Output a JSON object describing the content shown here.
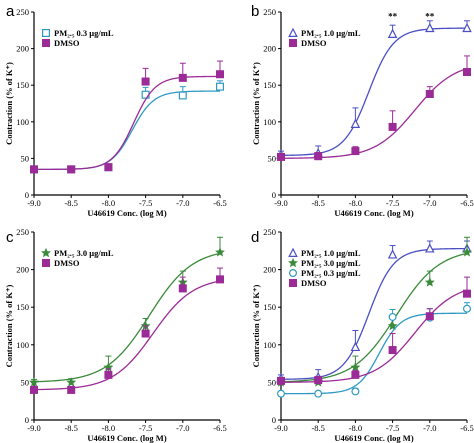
{
  "colors": {
    "pm25_0_3": "#2e9ac4",
    "pm25_1_0": "#4a4fc4",
    "pm25_3_0": "#3a8a3a",
    "dmso": "#9b2b97",
    "axis": "#000000"
  },
  "chart_data": [
    {
      "type": "scatter",
      "panel_label": "a",
      "xlabel": "U46619 Conc. (log M)",
      "ylabel": "Contraction (% of K⁺)",
      "xlim": [
        -9.0,
        -6.5
      ],
      "ylim": [
        0,
        250
      ],
      "x_ticks": [
        "-9.0",
        "-8.5",
        "-8.0",
        "-7.5",
        "-7.0",
        "-6.5"
      ],
      "y_ticks": [
        "0",
        "50",
        "100",
        "150",
        "200",
        "250"
      ],
      "legend_position": "top-left",
      "series": [
        {
          "name": "PM₂.₅ 0.3 μg/mL",
          "marker": "open-square",
          "color_key": "pm25_0_3",
          "x": [
            -9.0,
            -8.5,
            -8.0,
            -7.5,
            -7.0,
            -6.5
          ],
          "y": [
            35,
            35,
            38,
            137,
            136,
            148
          ],
          "error": [
            3,
            3,
            4,
            10,
            12,
            8
          ],
          "fit": {
            "bottom": 35,
            "top": 142,
            "ec50": -7.68,
            "hill": 3.0
          }
        },
        {
          "name": "DMSO",
          "marker": "filled-square",
          "color_key": "dmso",
          "x": [
            -9.0,
            -8.5,
            -8.0,
            -7.5,
            -7.0,
            -6.5
          ],
          "y": [
            35,
            35,
            38,
            155,
            160,
            165
          ],
          "error": [
            3,
            3,
            4,
            18,
            20,
            18
          ],
          "fit": {
            "bottom": 35,
            "top": 162,
            "ec50": -7.66,
            "hill": 3.0
          }
        }
      ]
    },
    {
      "type": "scatter",
      "panel_label": "b",
      "xlabel": "U46619 Conc. (log M)",
      "ylabel": "Contraction (% of K⁺)",
      "xlim": [
        -9.0,
        -6.5
      ],
      "ylim": [
        0,
        250
      ],
      "x_ticks": [
        "-9.0",
        "-8.5",
        "-8.0",
        "-7.5",
        "-7.0",
        "-6.5"
      ],
      "y_ticks": [
        "0",
        "50",
        "100",
        "150",
        "200",
        "250"
      ],
      "legend_position": "top-left",
      "annotations": [
        {
          "text": "**",
          "x": -7.5,
          "y": 240
        },
        {
          "text": "**",
          "x": -7.0,
          "y": 240
        }
      ],
      "series": [
        {
          "name": "PM₂.₅ 1.0 μg/mL",
          "marker": "open-triangle",
          "color_key": "pm25_1_0",
          "x": [
            -9.0,
            -8.5,
            -8.0,
            -7.5,
            -7.0,
            -6.5
          ],
          "y": [
            55,
            57,
            97,
            220,
            228,
            228
          ],
          "error": [
            5,
            10,
            22,
            12,
            10,
            10
          ],
          "fit": {
            "bottom": 54,
            "top": 228,
            "ec50": -7.82,
            "hill": 2.6
          }
        },
        {
          "name": "DMSO",
          "marker": "filled-square",
          "color_key": "dmso",
          "x": [
            -9.0,
            -8.5,
            -8.0,
            -7.5,
            -7.0,
            -6.5
          ],
          "y": [
            52,
            53,
            60,
            93,
            138,
            168
          ],
          "error": [
            4,
            5,
            6,
            22,
            10,
            22
          ],
          "fit": {
            "bottom": 50,
            "top": 182,
            "ec50": -7.2,
            "hill": 1.6
          }
        }
      ]
    },
    {
      "type": "scatter",
      "panel_label": "c",
      "xlabel": "U46619 Conc. (log M)",
      "ylabel": "Contraction (% of K⁺)",
      "xlim": [
        -9.0,
        -6.5
      ],
      "ylim": [
        0,
        250
      ],
      "x_ticks": [
        "-9.0",
        "-8.5",
        "-8.0",
        "-7.5",
        "-7.0",
        "-6.5"
      ],
      "y_ticks": [
        "0",
        "50",
        "100",
        "150",
        "200",
        "250"
      ],
      "legend_position": "top-left",
      "series": [
        {
          "name": "PM₂.₅ 3.0 μg/mL",
          "marker": "filled-star",
          "color_key": "pm25_3_0",
          "x": [
            -9.0,
            -8.5,
            -8.0,
            -7.5,
            -7.0,
            -6.5
          ],
          "y": [
            50,
            50,
            70,
            125,
            183,
            223
          ],
          "error": [
            4,
            5,
            15,
            10,
            15,
            20
          ],
          "fit": {
            "bottom": 50,
            "top": 228,
            "ec50": -7.45,
            "hill": 1.5
          }
        },
        {
          "name": "DMSO",
          "marker": "filled-square",
          "color_key": "dmso",
          "x": [
            -9.0,
            -8.5,
            -8.0,
            -7.5,
            -7.0,
            -6.5
          ],
          "y": [
            40,
            40,
            60,
            115,
            175,
            187
          ],
          "error": [
            3,
            4,
            8,
            10,
            15,
            15
          ],
          "fit": {
            "bottom": 40,
            "top": 190,
            "ec50": -7.4,
            "hill": 1.6
          }
        }
      ]
    },
    {
      "type": "scatter",
      "panel_label": "d",
      "xlabel": "U46619 Conc. (log M)",
      "ylabel": "Contraction (% of K⁺)",
      "xlim": [
        -9.0,
        -6.5
      ],
      "ylim": [
        0,
        250
      ],
      "x_ticks": [
        "-9.0",
        "-8.5",
        "-8.0",
        "-7.5",
        "-7.0",
        "-6.5"
      ],
      "y_ticks": [
        "0",
        "50",
        "100",
        "150",
        "200",
        "250"
      ],
      "legend_position": "top-left",
      "series": [
        {
          "name": "PM₂.₅ 1.0 μg/mL",
          "marker": "open-triangle",
          "color_key": "pm25_1_0",
          "x": [
            -9.0,
            -8.5,
            -8.0,
            -7.5,
            -7.0,
            -6.5
          ],
          "y": [
            55,
            57,
            97,
            220,
            228,
            228
          ],
          "error": [
            5,
            10,
            22,
            12,
            10,
            10
          ],
          "fit": {
            "bottom": 54,
            "top": 228,
            "ec50": -7.82,
            "hill": 2.6
          }
        },
        {
          "name": "PM₂.₅ 3.0 μg/mL",
          "marker": "filled-star",
          "color_key": "pm25_3_0",
          "x": [
            -9.0,
            -8.5,
            -8.0,
            -7.5,
            -7.0,
            -6.5
          ],
          "y": [
            50,
            50,
            70,
            125,
            183,
            223
          ],
          "error": [
            4,
            5,
            15,
            10,
            15,
            20
          ],
          "fit": {
            "bottom": 50,
            "top": 228,
            "ec50": -7.45,
            "hill": 1.5
          }
        },
        {
          "name": "PM₂.₅ 0.3 μg/mL",
          "marker": "open-circle",
          "color_key": "pm25_0_3",
          "x": [
            -9.0,
            -8.5,
            -8.0,
            -7.5,
            -7.0,
            -6.5
          ],
          "y": [
            35,
            35,
            38,
            137,
            136,
            148
          ],
          "error": [
            3,
            3,
            4,
            10,
            12,
            8
          ],
          "fit": {
            "bottom": 35,
            "top": 142,
            "ec50": -7.68,
            "hill": 3.0
          }
        },
        {
          "name": "DMSO",
          "marker": "filled-square",
          "color_key": "dmso",
          "x": [
            -9.0,
            -8.5,
            -8.0,
            -7.5,
            -7.0,
            -6.5
          ],
          "y": [
            52,
            53,
            60,
            93,
            138,
            168
          ],
          "error": [
            4,
            5,
            6,
            22,
            10,
            22
          ],
          "fit": {
            "bottom": 50,
            "top": 182,
            "ec50": -7.2,
            "hill": 1.6
          }
        }
      ]
    }
  ]
}
